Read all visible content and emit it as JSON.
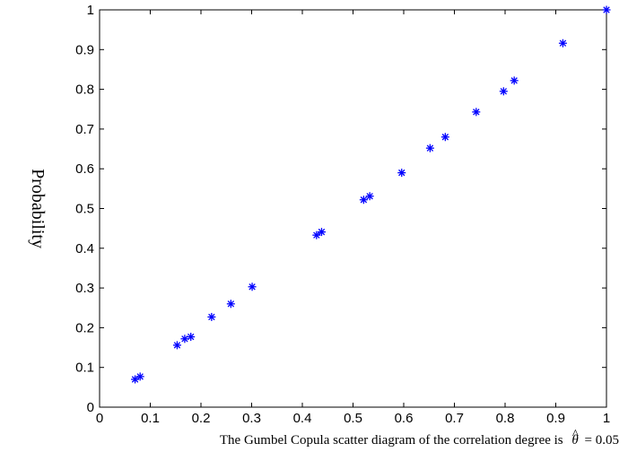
{
  "chart_data": {
    "type": "scatter",
    "title": "",
    "xlabel_text": "The Gumbel Copula scatter diagram of the correlation degree is",
    "xlabel_symbol": "θ",
    "xlabel_hat": "^",
    "xlabel_value": "= 0.05",
    "ylabel": "Probability",
    "xlim": [
      0,
      1
    ],
    "ylim": [
      0,
      1
    ],
    "grid": false,
    "legend": "none",
    "marker_color": "#0000ff",
    "x_ticks": [
      "0",
      "0.1",
      "0.2",
      "0.3",
      "0.4",
      "0.5",
      "0.6",
      "0.7",
      "0.8",
      "0.9",
      "1"
    ],
    "y_ticks": [
      "0",
      "0.1",
      "0.2",
      "0.3",
      "0.4",
      "0.5",
      "0.6",
      "0.7",
      "0.8",
      "0.9",
      "1"
    ],
    "points": [
      {
        "x": 0.07,
        "y": 0.07
      },
      {
        "x": 0.08,
        "y": 0.077
      },
      {
        "x": 0.153,
        "y": 0.156
      },
      {
        "x": 0.168,
        "y": 0.172
      },
      {
        "x": 0.18,
        "y": 0.177
      },
      {
        "x": 0.221,
        "y": 0.227
      },
      {
        "x": 0.259,
        "y": 0.26
      },
      {
        "x": 0.301,
        "y": 0.303
      },
      {
        "x": 0.428,
        "y": 0.433
      },
      {
        "x": 0.438,
        "y": 0.441
      },
      {
        "x": 0.521,
        "y": 0.522
      },
      {
        "x": 0.533,
        "y": 0.531
      },
      {
        "x": 0.596,
        "y": 0.59
      },
      {
        "x": 0.652,
        "y": 0.652
      },
      {
        "x": 0.682,
        "y": 0.68
      },
      {
        "x": 0.743,
        "y": 0.743
      },
      {
        "x": 0.797,
        "y": 0.795
      },
      {
        "x": 0.818,
        "y": 0.822
      },
      {
        "x": 0.914,
        "y": 0.916
      },
      {
        "x": 1.0,
        "y": 1.0
      }
    ]
  }
}
